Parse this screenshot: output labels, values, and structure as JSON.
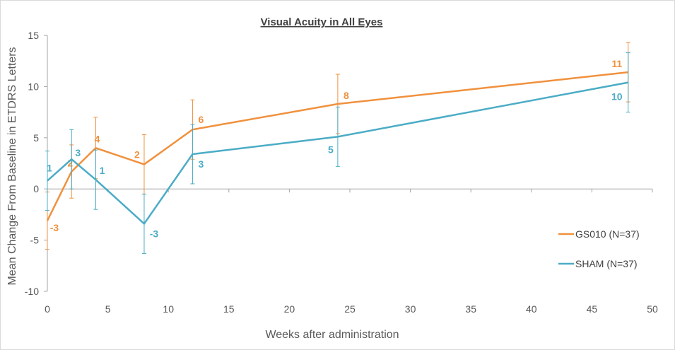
{
  "chart_data": {
    "type": "line",
    "title": "Visual Acuity in All Eyes",
    "xlabel": "Weeks after administration",
    "ylabel": "Mean Change From Baseline in ETDRS Letters",
    "xlim": [
      0,
      50
    ],
    "ylim": [
      -10,
      15
    ],
    "xticks": [
      "0",
      "5",
      "10",
      "15",
      "20",
      "25",
      "30",
      "35",
      "40",
      "45",
      "50"
    ],
    "yticks": [
      "-10",
      "-5",
      "0",
      "5",
      "10",
      "15"
    ],
    "grid": false,
    "legend_position": "right",
    "series": [
      {
        "name": "GS010 (N=37)",
        "color": "#f0913e",
        "x": [
          0,
          2,
          4,
          8,
          12,
          24,
          48
        ],
        "y": [
          -3.1,
          1.7,
          4.0,
          2.4,
          5.8,
          8.3,
          11.4
        ],
        "err_low": [
          -5.9,
          -0.9,
          1.0,
          -0.5,
          2.9,
          5.4,
          8.5
        ],
        "err_high": [
          -0.3,
          4.3,
          7.0,
          5.3,
          8.7,
          11.2,
          14.3
        ],
        "labels": [
          "-3",
          "2",
          "4",
          "2",
          "6",
          "8",
          "11"
        ]
      },
      {
        "name": "SHAM (N=37)",
        "color": "#4bacc6",
        "x": [
          0,
          2,
          4,
          8,
          12,
          24,
          48
        ],
        "y": [
          0.8,
          2.9,
          0.9,
          -3.4,
          3.4,
          5.1,
          10.4
        ],
        "err_low": [
          -2.1,
          0.0,
          -2.0,
          -6.3,
          0.5,
          2.2,
          7.5
        ],
        "err_high": [
          3.7,
          5.8,
          3.8,
          -0.5,
          6.3,
          8.0,
          13.3
        ],
        "labels": [
          "1",
          "3",
          "1",
          "-3",
          "3",
          "5",
          "10"
        ]
      }
    ]
  }
}
